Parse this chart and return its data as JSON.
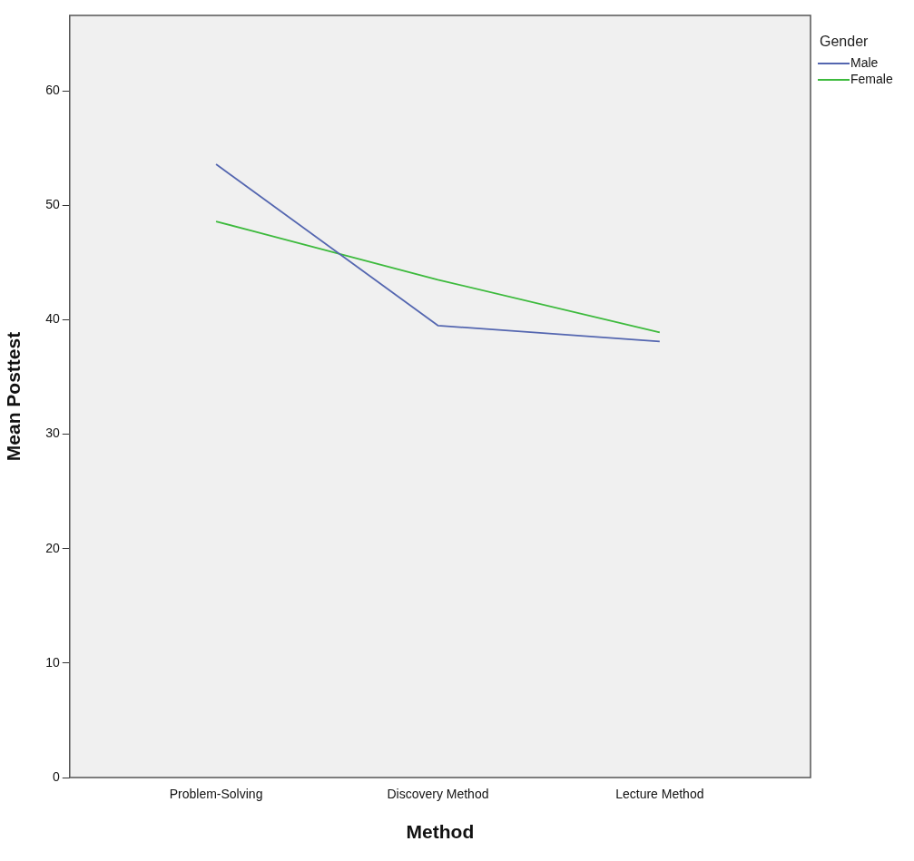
{
  "chart_data": {
    "type": "line",
    "xlabel": "Method",
    "ylabel": "Mean Posttest",
    "legend_title": "Gender",
    "categories": [
      "Problem-Solving",
      "Discovery Method",
      "Lecture Method"
    ],
    "series": [
      {
        "name": "Male",
        "color": "#5466b0",
        "values": [
          53.6,
          39.5,
          38.1
        ]
      },
      {
        "name": "Female",
        "color": "#3dba3d",
        "values": [
          48.6,
          43.5,
          38.9
        ]
      }
    ],
    "ylim": [
      0,
      66.6
    ],
    "yticks": [
      0,
      10,
      20,
      30,
      40,
      50,
      60
    ],
    "grid": false,
    "legend": "top right",
    "marker": "none",
    "line_style": "solid"
  }
}
